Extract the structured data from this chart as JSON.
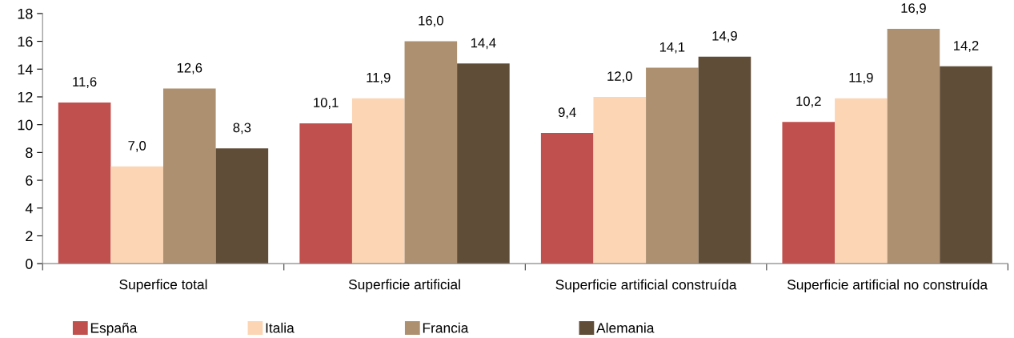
{
  "chart_data": {
    "type": "bar",
    "categories": [
      "Superfice total",
      "Superficie artificial",
      "Superficie artificial construída",
      "Superficie artificial no construída"
    ],
    "series": [
      {
        "name": "España",
        "color": "#c0504d",
        "values": [
          11.6,
          10.1,
          9.4,
          10.2
        ],
        "value_labels": [
          "11,6",
          "10,1",
          "9,4",
          "10,2"
        ]
      },
      {
        "name": "Italia",
        "color": "#fcd5b4",
        "values": [
          7.0,
          11.9,
          12.0,
          11.9
        ],
        "value_labels": [
          "7,0",
          "11,9",
          "12,0",
          "11,9"
        ]
      },
      {
        "name": "Francia",
        "color": "#ad9070",
        "values": [
          12.6,
          16.0,
          14.1,
          16.9
        ],
        "value_labels": [
          "12,6",
          "16,0",
          "14,1",
          "16,9"
        ]
      },
      {
        "name": "Alemania",
        "color": "#604d38",
        "values": [
          8.3,
          14.4,
          14.9,
          14.2
        ],
        "value_labels": [
          "8,3",
          "14,4",
          "14,9",
          "14,2"
        ]
      }
    ],
    "ylim": [
      0,
      18
    ],
    "yticks": [
      0,
      2,
      4,
      6,
      8,
      10,
      12,
      14,
      16,
      18
    ],
    "grid": false,
    "legend": "bottom"
  }
}
